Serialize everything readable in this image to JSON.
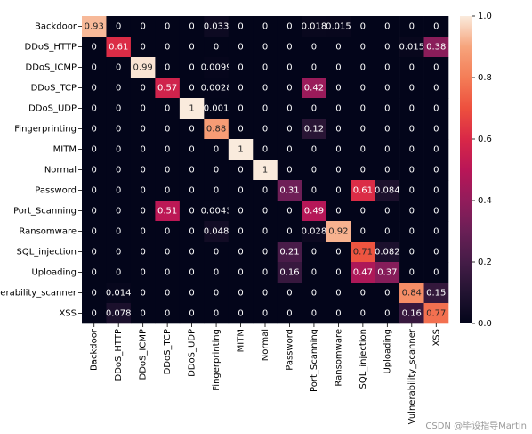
{
  "chart_data": {
    "type": "heatmap",
    "x_categories": [
      "Backdoor",
      "DDoS_HTTP",
      "DDoS_ICMP",
      "DDoS_TCP",
      "DDoS_UDP",
      "Fingerprinting",
      "MITM",
      "Normal",
      "Password",
      "Port_Scanning",
      "Ransomware",
      "SQL_injection",
      "Uploading",
      "Vulnerability_scanner",
      "XSS"
    ],
    "y_categories": [
      "Backdoor",
      "DDoS_HTTP",
      "DDoS_ICMP",
      "DDoS_TCP",
      "DDoS_UDP",
      "Fingerprinting",
      "MITM",
      "Normal",
      "Password",
      "Port_Scanning",
      "Ransomware",
      "SQL_injection",
      "Uploading",
      "Vulnerability_scanner",
      "XSS"
    ],
    "values": [
      [
        0.93,
        0,
        0,
        0,
        0,
        0.033,
        0,
        0,
        0,
        0.018,
        0.015,
        0,
        0,
        0,
        0
      ],
      [
        0,
        0.61,
        0,
        0,
        0,
        0,
        0,
        0,
        0,
        0,
        0,
        0,
        0,
        0.015,
        0.38
      ],
      [
        0,
        0,
        0.99,
        0,
        0,
        0.0099,
        0,
        0,
        0,
        0,
        0,
        0,
        0,
        0,
        0
      ],
      [
        0,
        0,
        0,
        0.57,
        0,
        0.0028,
        0,
        0,
        0,
        0.42,
        0,
        0,
        0,
        0,
        0
      ],
      [
        0,
        0,
        0,
        0,
        1,
        0.001,
        0,
        0,
        0,
        0,
        0,
        0,
        0,
        0,
        0
      ],
      [
        0,
        0,
        0,
        0,
        0,
        0.88,
        0,
        0,
        0,
        0.12,
        0,
        0,
        0,
        0,
        0
      ],
      [
        0,
        0,
        0,
        0,
        0,
        0,
        1,
        0,
        0,
        0,
        0,
        0,
        0,
        0,
        0
      ],
      [
        0,
        0,
        0,
        0,
        0,
        0,
        0,
        1,
        0,
        0,
        0,
        0,
        0,
        0,
        0
      ],
      [
        0,
        0,
        0,
        0,
        0,
        0,
        0,
        0,
        0.31,
        0,
        0,
        0.61,
        0.084,
        0,
        0
      ],
      [
        0,
        0,
        0,
        0.51,
        0,
        0.0043,
        0,
        0,
        0,
        0.49,
        0,
        0,
        0,
        0,
        0
      ],
      [
        0,
        0,
        0,
        0,
        0,
        0.048,
        0,
        0,
        0,
        0.028,
        0.92,
        0,
        0,
        0,
        0
      ],
      [
        0,
        0,
        0,
        0,
        0,
        0,
        0,
        0,
        0.21,
        0,
        0,
        0.71,
        0.082,
        0,
        0
      ],
      [
        0,
        0,
        0,
        0,
        0,
        0,
        0,
        0,
        0.16,
        0,
        0,
        0.47,
        0.37,
        0,
        0
      ],
      [
        0,
        0.014,
        0,
        0,
        0,
        0,
        0,
        0,
        0,
        0,
        0,
        0,
        0,
        0.84,
        0.15
      ],
      [
        0,
        0.078,
        0,
        0,
        0,
        0,
        0,
        0,
        0,
        0,
        0,
        0,
        0,
        0.16,
        0.77
      ]
    ],
    "colormap": [
      "#03051a",
      "#221331",
      "#451c47",
      "#6a1f56",
      "#921c5b",
      "#b91657",
      "#d92847",
      "#ed503e",
      "#f47d57",
      "#f6a47c",
      "#faebdd"
    ],
    "clim": [
      0,
      1
    ],
    "cticks": [
      {
        "value": 0,
        "label": "0.0"
      },
      {
        "value": 0.2,
        "label": "0.2"
      },
      {
        "value": 0.4,
        "label": "0.4"
      },
      {
        "value": 0.6,
        "label": "0.6"
      },
      {
        "value": 0.8,
        "label": "0.8"
      },
      {
        "value": 1,
        "label": "1.0"
      }
    ]
  },
  "watermark": "CSDN @毕设指导Martin"
}
